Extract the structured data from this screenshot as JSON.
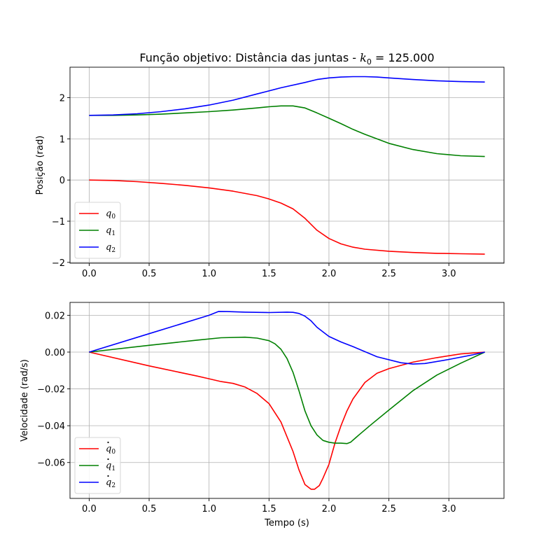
{
  "figure": {
    "title_prefix": "Função objetivo: Distância das juntas - ",
    "title_math_var": "k",
    "title_math_sub": "0",
    "title_math_rest": " = 125.000"
  },
  "chart_data": [
    {
      "type": "line",
      "xlabel": "",
      "ylabel": "Posição (rad)",
      "xlim": [
        -0.16,
        3.46
      ],
      "ylim": [
        -2.02,
        2.74
      ],
      "xticks": [
        0.0,
        0.5,
        1.0,
        1.5,
        2.0,
        2.5,
        3.0
      ],
      "xtick_labels": [
        "0.0",
        "0.5",
        "1.0",
        "1.5",
        "2.0",
        "2.5",
        "3.0"
      ],
      "yticks": [
        -2,
        -1,
        0,
        1,
        2
      ],
      "ytick_labels": [
        "−2",
        "−1",
        "0",
        "1",
        "2"
      ],
      "grid": true,
      "legend_position": "lower-left",
      "series": [
        {
          "name": "q0",
          "label_var": "q",
          "label_sub": "0",
          "label_dot": false,
          "color": "#ff0000",
          "x": [
            0.0,
            0.2,
            0.4,
            0.6,
            0.8,
            1.0,
            1.2,
            1.4,
            1.5,
            1.6,
            1.7,
            1.8,
            1.9,
            2.0,
            2.1,
            2.2,
            2.3,
            2.5,
            2.7,
            2.9,
            3.1,
            3.3
          ],
          "y": [
            0.0,
            -0.01,
            -0.04,
            -0.08,
            -0.13,
            -0.19,
            -0.27,
            -0.38,
            -0.46,
            -0.56,
            -0.7,
            -0.93,
            -1.22,
            -1.42,
            -1.55,
            -1.63,
            -1.68,
            -1.73,
            -1.76,
            -1.78,
            -1.79,
            -1.8
          ]
        },
        {
          "name": "q1",
          "label_var": "q",
          "label_sub": "1",
          "label_dot": false,
          "color": "#008000",
          "x": [
            0.0,
            0.2,
            0.4,
            0.6,
            0.8,
            1.0,
            1.2,
            1.4,
            1.5,
            1.6,
            1.7,
            1.8,
            1.9,
            2.0,
            2.1,
            2.2,
            2.3,
            2.5,
            2.7,
            2.9,
            3.1,
            3.3
          ],
          "y": [
            1.57,
            1.57,
            1.58,
            1.6,
            1.63,
            1.66,
            1.7,
            1.75,
            1.78,
            1.8,
            1.8,
            1.75,
            1.63,
            1.5,
            1.37,
            1.23,
            1.11,
            0.89,
            0.74,
            0.64,
            0.59,
            0.57
          ]
        },
        {
          "name": "q2",
          "label_var": "q",
          "label_sub": "2",
          "label_dot": false,
          "color": "#0000ff",
          "x": [
            0.0,
            0.2,
            0.4,
            0.6,
            0.8,
            1.0,
            1.2,
            1.4,
            1.6,
            1.8,
            1.9,
            2.0,
            2.1,
            2.2,
            2.3,
            2.4,
            2.5,
            2.7,
            2.9,
            3.1,
            3.3
          ],
          "y": [
            1.57,
            1.58,
            1.61,
            1.66,
            1.73,
            1.82,
            1.94,
            2.09,
            2.24,
            2.37,
            2.44,
            2.48,
            2.5,
            2.51,
            2.51,
            2.5,
            2.48,
            2.44,
            2.41,
            2.39,
            2.38
          ]
        }
      ]
    },
    {
      "type": "line",
      "xlabel": "Tempo (s)",
      "ylabel": "Velocidade (rad/s)",
      "xlim": [
        -0.16,
        3.46
      ],
      "ylim": [
        -0.0795,
        0.027
      ],
      "xticks": [
        0.0,
        0.5,
        1.0,
        1.5,
        2.0,
        2.5,
        3.0
      ],
      "xtick_labels": [
        "0.0",
        "0.5",
        "1.0",
        "1.5",
        "2.0",
        "2.5",
        "3.0"
      ],
      "yticks": [
        0.02,
        0.0,
        -0.02,
        -0.04,
        -0.06
      ],
      "ytick_labels": [
        "0.02",
        "0.00",
        "−0.02",
        "−0.04",
        "−0.06"
      ],
      "grid": true,
      "legend_position": "lower-left",
      "series": [
        {
          "name": "q̇0",
          "label_var": "q",
          "label_sub": "0",
          "label_dot": true,
          "color": "#ff0000",
          "x": [
            0.0,
            0.5,
            0.9,
            1.0,
            1.1,
            1.2,
            1.3,
            1.4,
            1.5,
            1.6,
            1.7,
            1.75,
            1.8,
            1.85,
            1.88,
            1.92,
            1.95,
            2.0,
            2.05,
            2.1,
            2.15,
            2.2,
            2.3,
            2.4,
            2.5,
            2.7,
            2.9,
            3.1,
            3.3
          ],
          "y": [
            0.0,
            -0.0075,
            -0.013,
            -0.0145,
            -0.016,
            -0.017,
            -0.019,
            -0.0225,
            -0.028,
            -0.038,
            -0.054,
            -0.064,
            -0.072,
            -0.0745,
            -0.0745,
            -0.0725,
            -0.0685,
            -0.061,
            -0.0495,
            -0.04,
            -0.032,
            -0.0255,
            -0.0165,
            -0.0115,
            -0.009,
            -0.0055,
            -0.003,
            -0.001,
            0.0
          ]
        },
        {
          "name": "q̇1",
          "label_var": "q",
          "label_sub": "1",
          "label_dot": true,
          "color": "#008000",
          "x": [
            0.0,
            0.5,
            0.9,
            1.1,
            1.3,
            1.4,
            1.5,
            1.55,
            1.6,
            1.65,
            1.7,
            1.75,
            1.8,
            1.85,
            1.9,
            1.95,
            2.0,
            2.05,
            2.1,
            2.15,
            2.18,
            2.25,
            2.35,
            2.5,
            2.7,
            2.9,
            3.1,
            3.3
          ],
          "y": [
            0.0,
            0.0037,
            0.0065,
            0.0078,
            0.0081,
            0.0076,
            0.0062,
            0.0045,
            0.0015,
            -0.0035,
            -0.011,
            -0.021,
            -0.032,
            -0.04,
            -0.045,
            -0.048,
            -0.049,
            -0.0495,
            -0.0495,
            -0.0497,
            -0.049,
            -0.045,
            -0.0395,
            -0.0315,
            -0.021,
            -0.0125,
            -0.006,
            0.0
          ]
        },
        {
          "name": "q̇2",
          "label_var": "q",
          "label_sub": "2",
          "label_dot": true,
          "color": "#0000ff",
          "x": [
            0.0,
            0.5,
            1.0,
            1.08,
            1.15,
            1.3,
            1.5,
            1.65,
            1.7,
            1.75,
            1.8,
            1.85,
            1.9,
            2.0,
            2.1,
            2.2,
            2.4,
            2.6,
            2.7,
            2.8,
            3.0,
            3.2,
            3.3
          ],
          "y": [
            0.0,
            0.01,
            0.02,
            0.0221,
            0.022,
            0.0217,
            0.0215,
            0.0217,
            0.0216,
            0.021,
            0.0195,
            0.017,
            0.0135,
            0.0085,
            0.0055,
            0.003,
            -0.0025,
            -0.0058,
            -0.0065,
            -0.0062,
            -0.004,
            -0.0015,
            0.0
          ]
        }
      ]
    }
  ]
}
